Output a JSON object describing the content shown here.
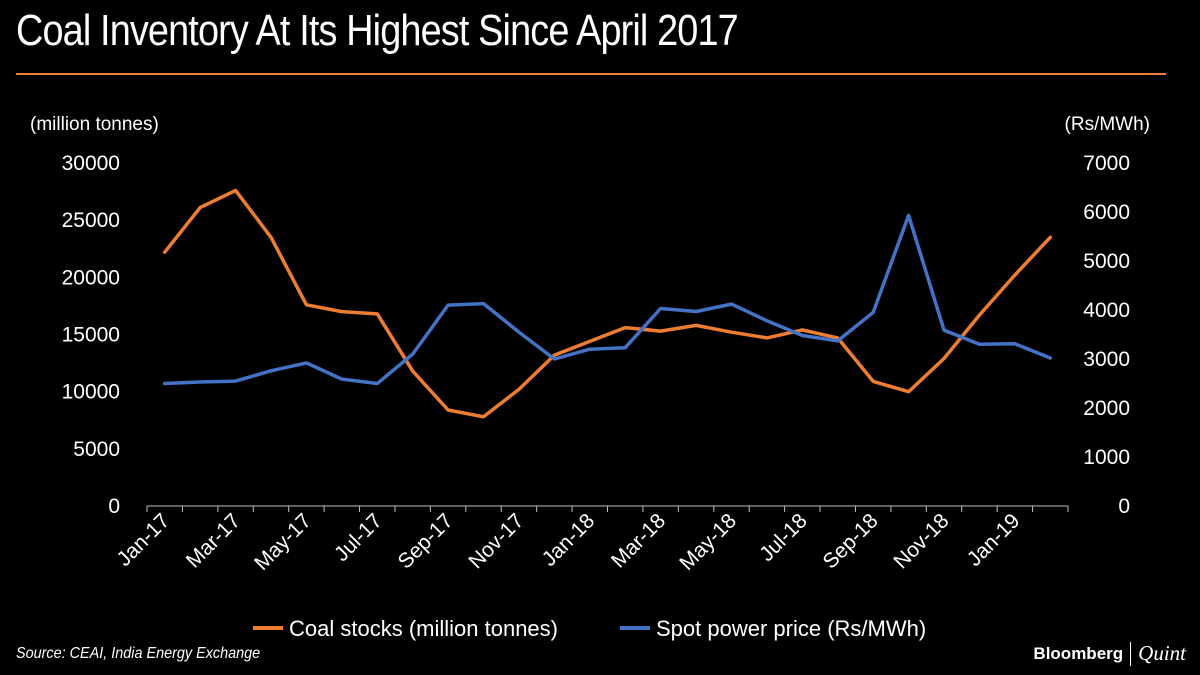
{
  "title": "Coal Inventory At Its Highest Since April 2017",
  "source": "Source: CEAI, India Energy Exchange",
  "brand": {
    "primary": "Bloomberg",
    "secondary": "Quint"
  },
  "colors": {
    "background": "#000000",
    "accent": "#e8813a",
    "coal": "#ed7d31",
    "power": "#4472c4",
    "axis": "#bfbfbf"
  },
  "chart_data": {
    "type": "line",
    "categories": [
      "Jan-17",
      "Feb-17",
      "Mar-17",
      "Apr-17",
      "May-17",
      "Jun-17",
      "Jul-17",
      "Aug-17",
      "Sep-17",
      "Oct-17",
      "Nov-17",
      "Dec-17",
      "Jan-18",
      "Feb-18",
      "Mar-18",
      "Apr-18",
      "May-18",
      "Jun-18",
      "Jul-18",
      "Aug-18",
      "Sep-18",
      "Oct-18",
      "Nov-18",
      "Dec-18",
      "Jan-19",
      "Feb-19"
    ],
    "tick_labels": [
      "Jan-17",
      "Mar-17",
      "May-17",
      "Jul-17",
      "Sep-17",
      "Nov-17",
      "Jan-18",
      "Mar-18",
      "May-18",
      "Jul-18",
      "Sep-18",
      "Nov-18",
      "Jan-19"
    ],
    "y_left": {
      "label": "(million tonnes)",
      "min": 0,
      "max": 30000,
      "ticks": [
        0,
        5000,
        10000,
        15000,
        20000,
        25000,
        30000
      ]
    },
    "y_right": {
      "label": "(Rs/MWh)",
      "min": 0,
      "max": 7000,
      "ticks": [
        0,
        1000,
        2000,
        3000,
        4000,
        5000,
        6000,
        7000
      ]
    },
    "series": [
      {
        "name": "Coal stocks (million tonnes)",
        "axis": "left",
        "values": [
          22200,
          26100,
          27600,
          23500,
          17600,
          17000,
          16800,
          11800,
          8400,
          7800,
          10200,
          13200,
          14400,
          15600,
          15300,
          15800,
          15200,
          14700,
          15400,
          14700,
          10900,
          10000,
          12900,
          16700,
          20200,
          23500
        ]
      },
      {
        "name": "Spot power price (Rs/MWh)",
        "axis": "right",
        "values": [
          2500,
          2530,
          2550,
          2760,
          2920,
          2590,
          2500,
          3100,
          4100,
          4130,
          3550,
          3000,
          3200,
          3230,
          4030,
          3970,
          4120,
          3780,
          3480,
          3370,
          3950,
          5930,
          3590,
          3300,
          3310,
          3020
        ]
      }
    ],
    "legend_position": "bottom",
    "grid": false
  }
}
